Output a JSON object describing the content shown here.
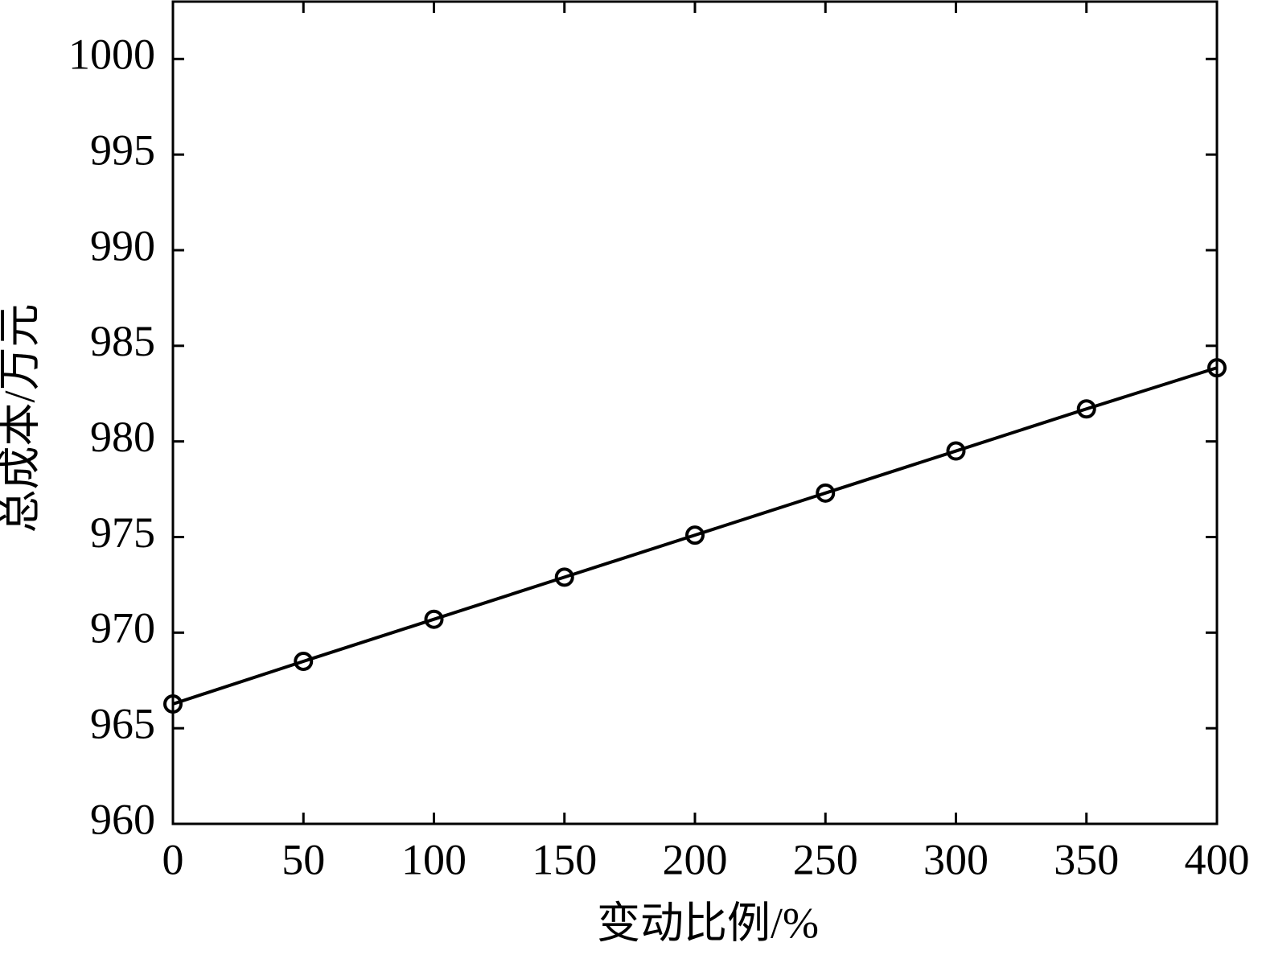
{
  "chart_data": {
    "type": "line",
    "x_label": "变动比例/%",
    "y_label": "总成本/万元",
    "x": [
      0,
      50,
      100,
      150,
      200,
      250,
      300,
      350,
      400
    ],
    "values": [
      966.27,
      968.5,
      970.7,
      972.9,
      975.1,
      977.3,
      979.5,
      981.7,
      983.85
    ],
    "color": "#000000",
    "marker": "circle",
    "xlim": [
      0,
      400
    ],
    "xticks": [
      0,
      50,
      100,
      150,
      200,
      250,
      300,
      350,
      400
    ],
    "ylim": [
      960,
      1003
    ],
    "yticks": [
      960,
      965,
      970,
      975,
      980,
      985,
      990,
      995,
      1000
    ],
    "grid": false
  }
}
